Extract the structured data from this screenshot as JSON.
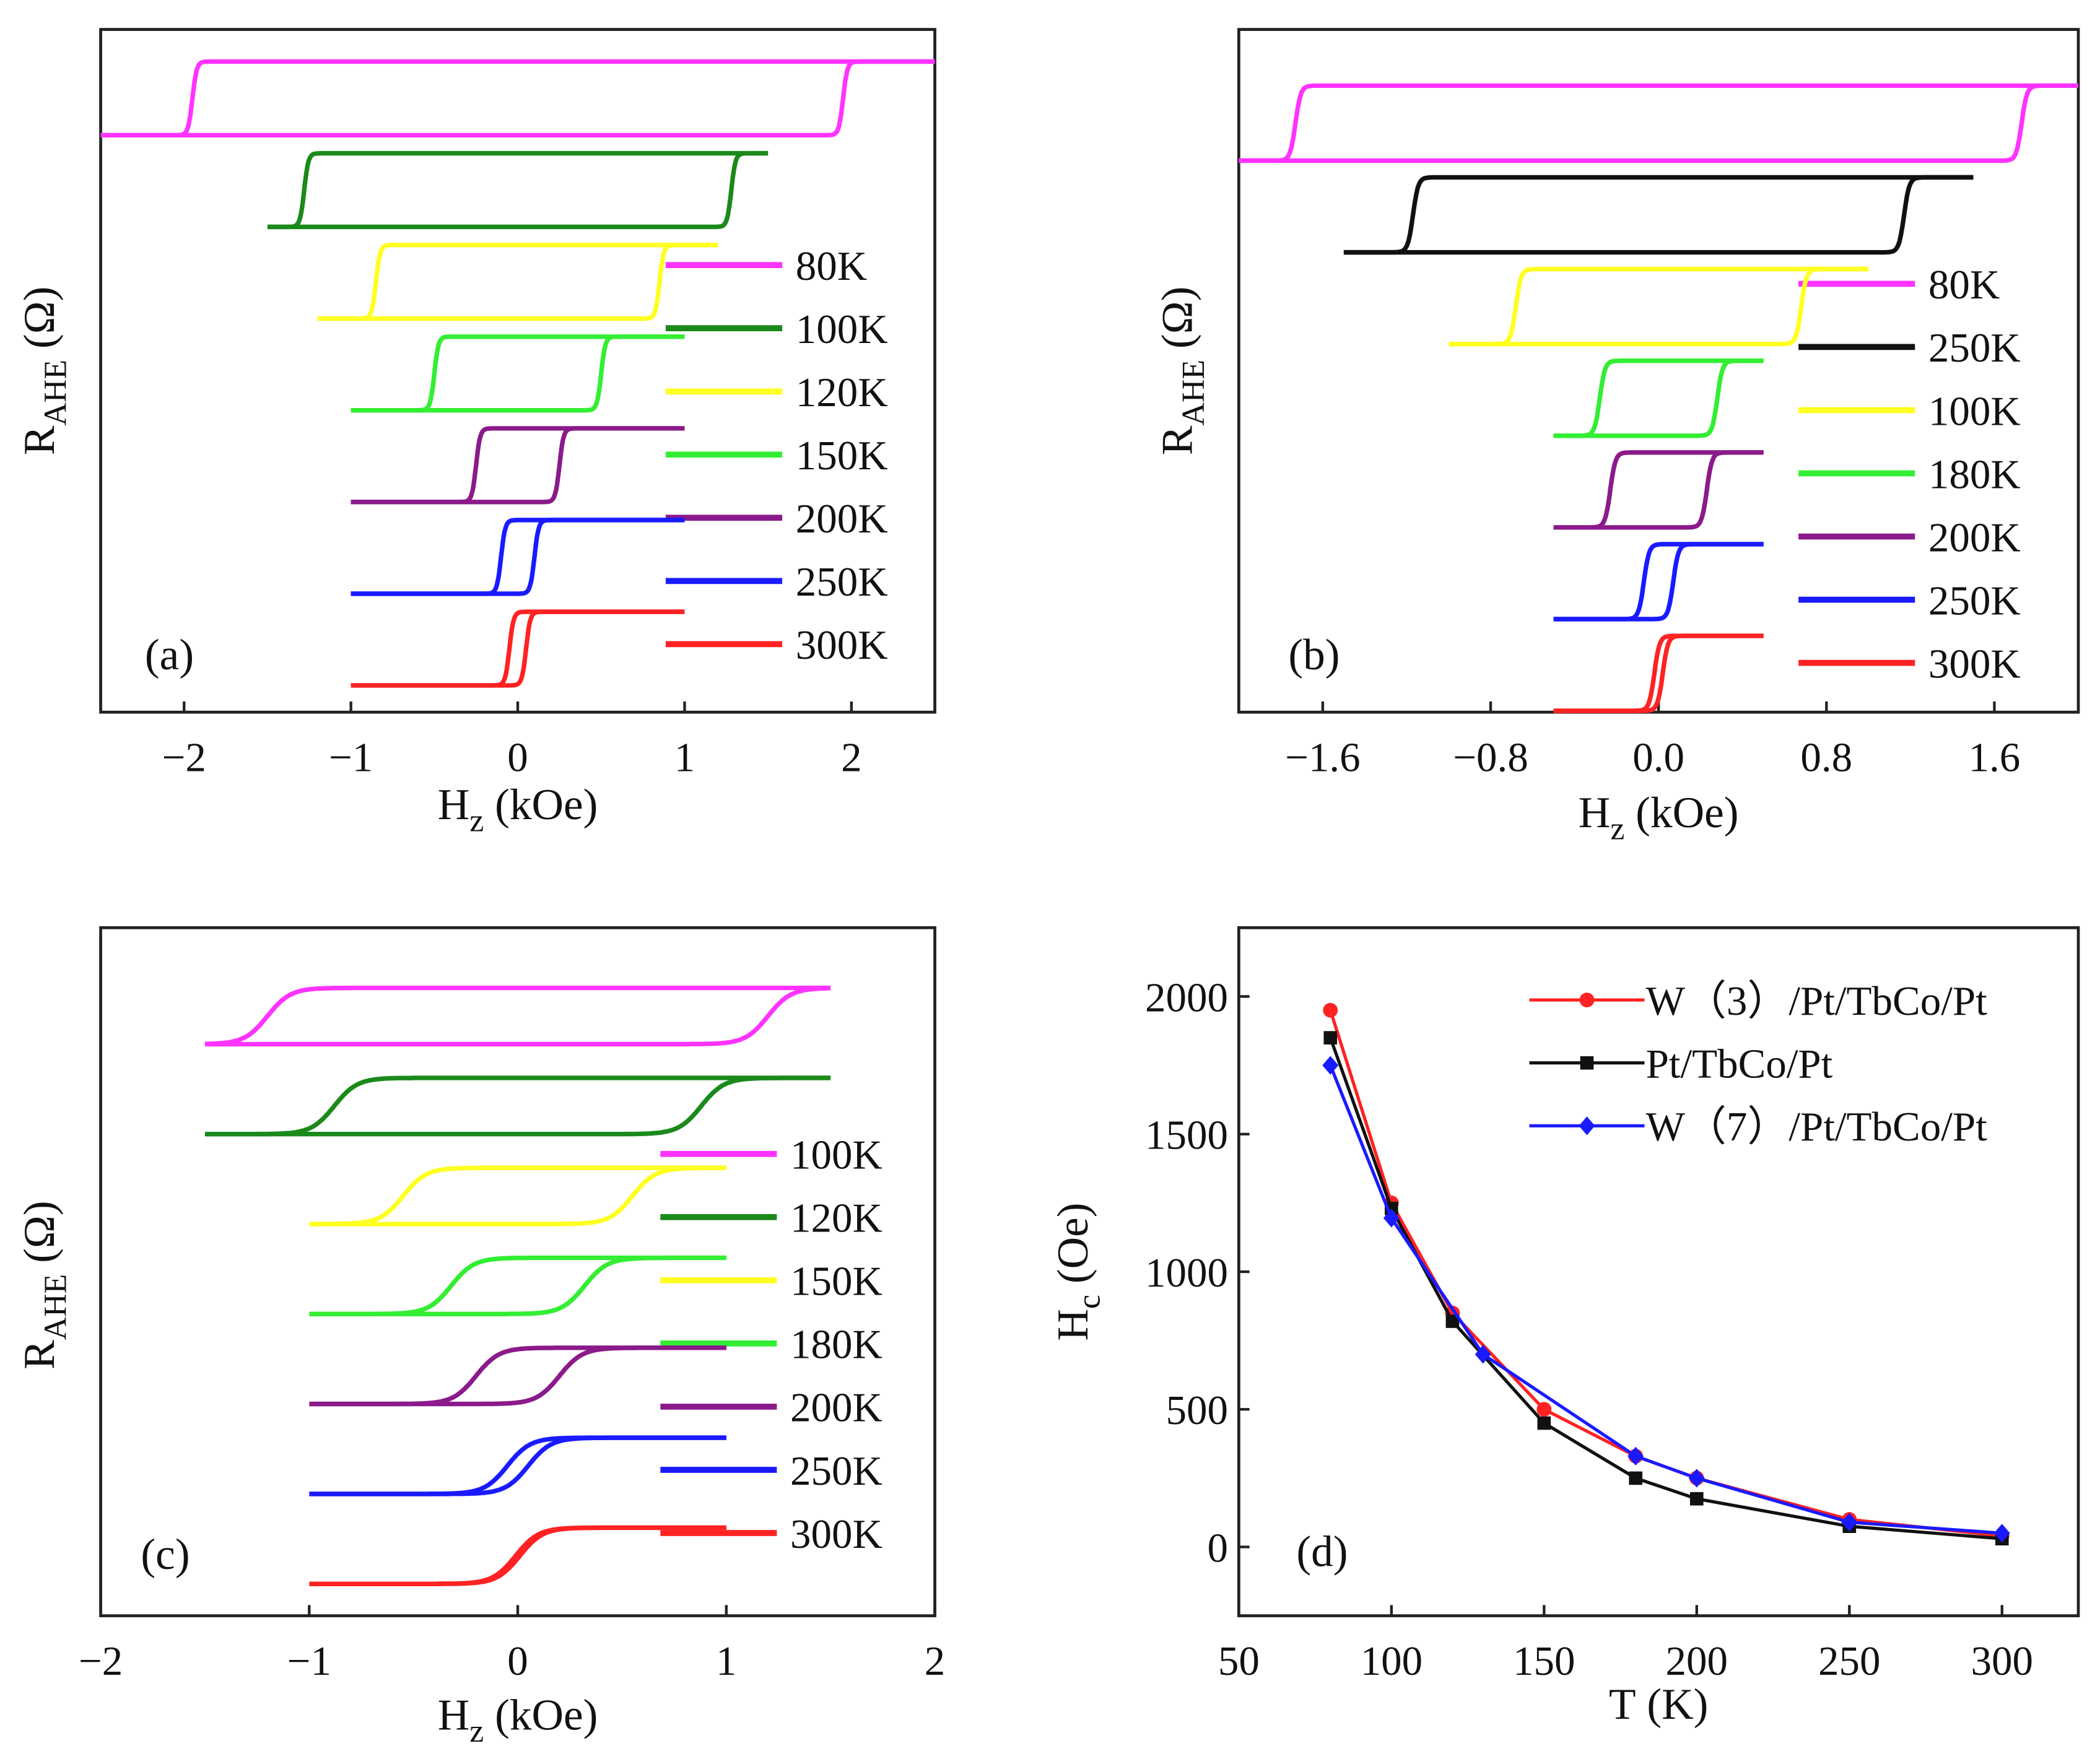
{
  "chart_data": [
    {
      "panel_label": "(a)",
      "type": "line",
      "xlabel": {
        "main": "H",
        "sub": "z",
        "rest": " (kOe)"
      },
      "ylabel": {
        "main": "R",
        "sub": "AHE",
        "rest": " (Ω)"
      },
      "xlim": [
        -2.5,
        2.5
      ],
      "xticks": [
        -2,
        -1,
        0,
        1,
        2
      ],
      "xtick_labels": [
        "−2",
        "−1",
        "0",
        "1",
        "2"
      ],
      "y_ticks_shown": false,
      "legend_position": "right",
      "loops": [
        {
          "name": "80K",
          "color": "#ff33ff",
          "field_range_kOe": [
            -2.5,
            2.5
          ],
          "coercive_field_kOe": 1.95,
          "switch_sharpness": "sharp"
        },
        {
          "name": "100K",
          "color": "#1a8a1a",
          "field_range_kOe": [
            -1.5,
            1.5
          ],
          "coercive_field_kOe": 1.28,
          "switch_sharpness": "sharp"
        },
        {
          "name": "120K",
          "color": "#ffff22",
          "field_range_kOe": [
            -1.2,
            1.2
          ],
          "coercive_field_kOe": 0.85,
          "switch_sharpness": "sharp"
        },
        {
          "name": "150K",
          "color": "#33ee33",
          "field_range_kOe": [
            -1.0,
            1.0
          ],
          "coercive_field_kOe": 0.5,
          "switch_sharpness": "sharp"
        },
        {
          "name": "200K",
          "color": "#8b1a8b",
          "field_range_kOe": [
            -1.0,
            1.0
          ],
          "coercive_field_kOe": 0.25,
          "switch_sharpness": "sharp"
        },
        {
          "name": "250K",
          "color": "#1a1aff",
          "field_range_kOe": [
            -1.0,
            1.0
          ],
          "coercive_field_kOe": 0.1,
          "switch_sharpness": "sharp"
        },
        {
          "name": "300K",
          "color": "#ff2222",
          "field_range_kOe": [
            -1.0,
            1.0
          ],
          "coercive_field_kOe": 0.05,
          "switch_sharpness": "sharp"
        }
      ]
    },
    {
      "panel_label": "(b)",
      "type": "line",
      "xlabel": {
        "main": "H",
        "sub": "z",
        "rest": " (kOe)"
      },
      "ylabel": {
        "main": "R",
        "sub": "AHE",
        "rest": " (Ω)"
      },
      "xlim": [
        -2.0,
        2.0
      ],
      "xticks": [
        -1.6,
        -0.8,
        0.0,
        0.8,
        1.6
      ],
      "xtick_labels": [
        "−1.6",
        "−0.8",
        "0.0",
        "0.8",
        "1.6"
      ],
      "y_ticks_shown": false,
      "legend_position": "right",
      "loops": [
        {
          "name": "80K",
          "color": "#ff33ff",
          "field_range_kOe": [
            -2.0,
            2.0
          ],
          "coercive_field_kOe": 1.73,
          "switch_sharpness": "sharp"
        },
        {
          "name": "250K",
          "color": "#111111",
          "field_range_kOe": [
            -1.5,
            1.5
          ],
          "coercive_field_kOe": 1.17,
          "switch_sharpness": "sharp"
        },
        {
          "name": "100K",
          "color": "#ffff22",
          "field_range_kOe": [
            -1.0,
            1.0
          ],
          "coercive_field_kOe": 0.68,
          "switch_sharpness": "sharp"
        },
        {
          "name": "180K",
          "color": "#33ee33",
          "field_range_kOe": [
            -0.5,
            0.5
          ],
          "coercive_field_kOe": 0.28,
          "switch_sharpness": "sharp"
        },
        {
          "name": "200K",
          "color": "#8b1a8b",
          "field_range_kOe": [
            -0.5,
            0.5
          ],
          "coercive_field_kOe": 0.23,
          "switch_sharpness": "sharp"
        },
        {
          "name": "250K",
          "color": "#1a1aff",
          "field_range_kOe": [
            -0.5,
            0.5
          ],
          "coercive_field_kOe": 0.07,
          "switch_sharpness": "sharp"
        },
        {
          "name": "300K",
          "color": "#ff2222",
          "field_range_kOe": [
            -0.5,
            0.5
          ],
          "coercive_field_kOe": 0.02,
          "switch_sharpness": "sharp"
        }
      ]
    },
    {
      "panel_label": "(c)",
      "type": "line",
      "xlabel": {
        "main": "H",
        "sub": "z",
        "rest": " (kOe)"
      },
      "ylabel": {
        "main": "R",
        "sub": "AHE",
        "rest": " (Ω)"
      },
      "xlim": [
        -2.0,
        2.0
      ],
      "xticks": [
        -2,
        -1,
        0,
        1,
        2
      ],
      "xtick_labels": [
        "−2",
        "−1",
        "0",
        "1",
        "2"
      ],
      "y_ticks_shown": false,
      "legend_position": "right",
      "loops": [
        {
          "name": "100K",
          "color": "#ff33ff",
          "field_range_kOe": [
            -1.5,
            1.5
          ],
          "coercive_field_kOe": 1.2,
          "switch_sharpness": "smooth"
        },
        {
          "name": "120K",
          "color": "#1a8a1a",
          "field_range_kOe": [
            -1.5,
            1.5
          ],
          "coercive_field_kOe": 0.88,
          "switch_sharpness": "smooth"
        },
        {
          "name": "150K",
          "color": "#ffff22",
          "field_range_kOe": [
            -1.0,
            1.0
          ],
          "coercive_field_kOe": 0.55,
          "switch_sharpness": "smooth"
        },
        {
          "name": "180K",
          "color": "#33ee33",
          "field_range_kOe": [
            -1.0,
            1.0
          ],
          "coercive_field_kOe": 0.32,
          "switch_sharpness": "smooth"
        },
        {
          "name": "200K",
          "color": "#8b1a8b",
          "field_range_kOe": [
            -1.0,
            1.0
          ],
          "coercive_field_kOe": 0.2,
          "switch_sharpness": "smooth"
        },
        {
          "name": "250K",
          "color": "#1a1aff",
          "field_range_kOe": [
            -1.0,
            1.0
          ],
          "coercive_field_kOe": 0.05,
          "switch_sharpness": "smooth"
        },
        {
          "name": "300K",
          "color": "#ff2222",
          "field_range_kOe": [
            -1.0,
            1.0
          ],
          "coercive_field_kOe": 0.01,
          "switch_sharpness": "smooth"
        }
      ]
    },
    {
      "panel_label": "(d)",
      "type": "line",
      "xlabel": {
        "main": "T",
        "sub": "",
        "rest": " (K)"
      },
      "ylabel": {
        "main": "H",
        "sub": "c",
        "rest": " (Oe)"
      },
      "xlim": [
        50,
        325
      ],
      "ylim": [
        -250,
        2250
      ],
      "xticks": [
        50,
        100,
        150,
        200,
        250,
        300
      ],
      "xtick_labels": [
        "50",
        "100",
        "150",
        "200",
        "250",
        "300"
      ],
      "yticks": [
        0,
        500,
        1000,
        1500,
        2000
      ],
      "ytick_labels": [
        "0",
        "500",
        "1000",
        "1500",
        "2000"
      ],
      "legend_position": "top-right",
      "series": [
        {
          "name": "W（3）/Pt/TbCo/Pt",
          "color": "#ff2222",
          "marker": "circle",
          "x": [
            80,
            100,
            120,
            150,
            180,
            200,
            250,
            300
          ],
          "y": [
            1950,
            1250,
            850,
            500,
            330,
            250,
            100,
            40
          ]
        },
        {
          "name": "Pt/TbCo/Pt",
          "color": "#111111",
          "marker": "square",
          "x": [
            80,
            100,
            120,
            150,
            180,
            200,
            250,
            300
          ],
          "y": [
            1850,
            1230,
            820,
            450,
            250,
            175,
            75,
            30
          ]
        },
        {
          "name": "W（7）/Pt/TbCo/Pt",
          "color": "#1a1aff",
          "marker": "diamond",
          "x": [
            80,
            100,
            130,
            180,
            200,
            250,
            300
          ],
          "y": [
            1750,
            1195,
            700,
            330,
            250,
            90,
            50
          ]
        }
      ]
    }
  ]
}
